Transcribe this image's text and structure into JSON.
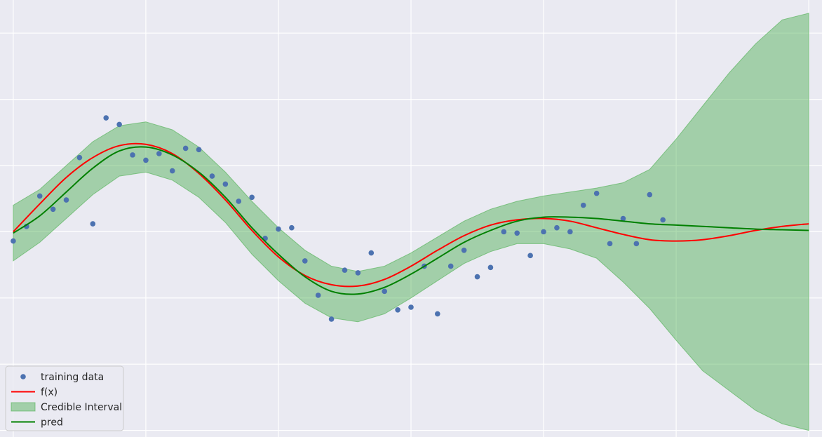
{
  "chart_data": {
    "type": "line",
    "style": "seaborn-darkgrid",
    "xlim": [
      -0.1,
      6.1
    ],
    "ylim": [
      -1.55,
      1.75
    ],
    "grid": true,
    "legend_placement": "lower-left",
    "colors": {
      "background": "#eaeaf2",
      "grid": "#ffffff",
      "training_data": "#4c72b0",
      "f_x": "#ff0000",
      "pred": "#008000",
      "interval": "#4caf50"
    },
    "legend": [
      {
        "label": "training data",
        "kind": "marker",
        "color": "#4c72b0"
      },
      {
        "label": "f(x)",
        "kind": "line",
        "color": "#ff0000"
      },
      {
        "label": "Credible Interval",
        "kind": "patch",
        "color": "#4caf50"
      },
      {
        "label": "pred",
        "kind": "line",
        "color": "#008000"
      }
    ],
    "training_data": {
      "x": [
        0.0,
        0.1,
        0.2,
        0.3,
        0.4,
        0.5,
        0.6,
        0.7,
        0.8,
        0.9,
        1.0,
        1.1,
        1.2,
        1.3,
        1.4,
        1.5,
        1.6,
        1.7,
        1.8,
        1.9,
        2.0,
        2.1,
        2.2,
        2.3,
        2.4,
        2.5,
        2.6,
        2.7,
        2.8,
        2.9,
        3.0,
        3.1,
        3.2,
        3.3,
        3.4,
        3.5,
        3.6,
        3.7,
        3.8,
        3.9,
        4.0,
        4.1,
        4.2,
        4.3,
        4.4,
        4.5,
        4.6,
        4.7,
        4.8,
        4.9
      ],
      "y": [
        -0.07,
        0.04,
        0.27,
        0.17,
        0.24,
        0.56,
        0.06,
        0.86,
        0.81,
        0.58,
        0.54,
        0.59,
        0.46,
        0.63,
        0.62,
        0.42,
        0.36,
        0.23,
        0.26,
        -0.05,
        0.02,
        0.03,
        -0.22,
        -0.48,
        -0.66,
        -0.29,
        -0.31,
        -0.16,
        -0.45,
        -0.59,
        -0.57,
        -0.26,
        -0.62,
        -0.26,
        -0.14,
        -0.34,
        -0.27,
        0.0,
        -0.01,
        -0.18,
        -0.0,
        0.03,
        -0.0,
        0.2,
        0.29,
        -0.09,
        0.1,
        -0.09,
        0.28,
        0.09
      ]
    },
    "f_x": {
      "x": [
        0.0,
        0.2,
        0.4,
        0.6,
        0.8,
        1.0,
        1.2,
        1.4,
        1.6,
        1.8,
        2.0,
        2.2,
        2.4,
        2.6,
        2.8,
        3.0,
        3.2,
        3.4,
        3.6,
        3.8,
        4.0,
        4.2,
        4.4,
        4.6,
        4.8,
        5.0,
        5.2,
        5.4,
        5.6,
        5.8,
        6.0
      ],
      "y": [
        0.0,
        0.21,
        0.41,
        0.56,
        0.65,
        0.66,
        0.59,
        0.44,
        0.24,
        0.01,
        -0.19,
        -0.33,
        -0.4,
        -0.41,
        -0.36,
        -0.26,
        -0.14,
        -0.03,
        0.05,
        0.09,
        0.1,
        0.08,
        0.03,
        -0.02,
        -0.06,
        -0.07,
        -0.06,
        -0.03,
        0.01,
        0.04,
        0.06
      ]
    },
    "pred": {
      "x": [
        0.0,
        0.2,
        0.4,
        0.6,
        0.8,
        1.0,
        1.2,
        1.4,
        1.6,
        1.8,
        2.0,
        2.2,
        2.4,
        2.6,
        2.8,
        3.0,
        3.2,
        3.4,
        3.6,
        3.8,
        4.0,
        4.2,
        4.4,
        4.6,
        4.8,
        5.0,
        5.2,
        5.4,
        5.6,
        5.8,
        6.0
      ],
      "y": [
        -0.01,
        0.12,
        0.3,
        0.48,
        0.61,
        0.64,
        0.58,
        0.45,
        0.26,
        0.03,
        -0.17,
        -0.34,
        -0.45,
        -0.47,
        -0.42,
        -0.32,
        -0.2,
        -0.08,
        0.01,
        0.08,
        0.11,
        0.11,
        0.1,
        0.08,
        0.06,
        0.05,
        0.04,
        0.03,
        0.02,
        0.015,
        0.01
      ]
    },
    "interval": {
      "x": [
        0.0,
        0.2,
        0.4,
        0.6,
        0.8,
        1.0,
        1.2,
        1.4,
        1.6,
        1.8,
        2.0,
        2.2,
        2.4,
        2.6,
        2.8,
        3.0,
        3.2,
        3.4,
        3.6,
        3.8,
        4.0,
        4.2,
        4.4,
        4.6,
        4.8,
        5.0,
        5.2,
        5.4,
        5.6,
        5.8,
        6.0
      ],
      "upper": [
        0.2,
        0.32,
        0.5,
        0.68,
        0.8,
        0.83,
        0.77,
        0.64,
        0.45,
        0.23,
        0.03,
        -0.14,
        -0.26,
        -0.3,
        -0.26,
        -0.16,
        -0.04,
        0.08,
        0.17,
        0.23,
        0.27,
        0.3,
        0.33,
        0.37,
        0.47,
        0.7,
        0.95,
        1.2,
        1.42,
        1.6,
        1.65
      ],
      "lower": [
        -0.22,
        -0.08,
        0.1,
        0.28,
        0.42,
        0.45,
        0.39,
        0.26,
        0.07,
        -0.17,
        -0.37,
        -0.54,
        -0.65,
        -0.68,
        -0.62,
        -0.5,
        -0.37,
        -0.24,
        -0.15,
        -0.09,
        -0.09,
        -0.13,
        -0.2,
        -0.38,
        -0.58,
        -0.82,
        -1.05,
        -1.2,
        -1.35,
        -1.45,
        -1.5
      ]
    }
  }
}
